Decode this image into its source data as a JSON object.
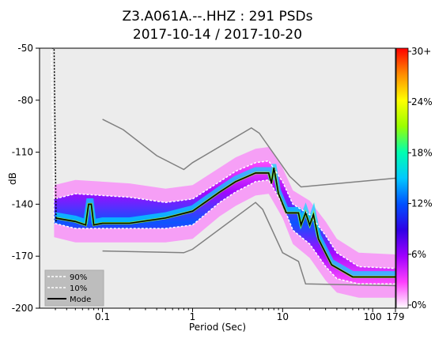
{
  "chart_data": {
    "type": "heatmap",
    "title": "Z3.A061A.--.HHZ : 291 PSDs",
    "subtitle": "2017-10-14 / 2017-10-20",
    "xlabel": "Period (Sec)",
    "ylabel": "dB",
    "x_scale": "log",
    "xlim": [
      0.02,
      179
    ],
    "ylim": [
      -200,
      -50
    ],
    "x_ticks": [
      {
        "value": 0.1,
        "label": "0.1"
      },
      {
        "value": 1,
        "label": "1"
      },
      {
        "value": 10,
        "label": "10"
      },
      {
        "value": 100,
        "label": "100"
      },
      {
        "value": 179,
        "label": "179"
      }
    ],
    "y_ticks": [
      {
        "value": -50,
        "label": "-50"
      },
      {
        "value": -80,
        "label": "-80"
      },
      {
        "value": -110,
        "label": "-110"
      },
      {
        "value": -140,
        "label": "-140"
      },
      {
        "value": -170,
        "label": "-170"
      },
      {
        "value": -200,
        "label": "-200"
      }
    ],
    "colorbar": {
      "ticks": [
        "30+",
        "24%",
        "18%",
        "12%",
        "6%",
        "0%"
      ],
      "colors": [
        "#ff0000",
        "#ff8c00",
        "#ffff00",
        "#9aff00",
        "#00ffb0",
        "#00c8ff",
        "#0050ff",
        "#3000e6",
        "#a000ff",
        "#ff40ff",
        "#ffffff"
      ]
    },
    "legend": {
      "position": "bottom-left",
      "entries": [
        {
          "label": "90%",
          "style": "dashed-white"
        },
        {
          "label": "10%",
          "style": "dashed-white"
        },
        {
          "label": "Mode",
          "style": "solid-black"
        }
      ]
    },
    "noise_model_high": [
      [
        0.1,
        -91
      ],
      [
        0.17,
        -97
      ],
      [
        0.4,
        -112
      ],
      [
        0.8,
        -120
      ],
      [
        1,
        -116
      ],
      [
        4.5,
        -96
      ],
      [
        5.5,
        -99
      ],
      [
        12,
        -124
      ],
      [
        16,
        -130
      ],
      [
        179,
        -125
      ]
    ],
    "noise_model_low": [
      [
        0.1,
        -167
      ],
      [
        0.8,
        -168
      ],
      [
        1,
        -166
      ],
      [
        5,
        -139
      ],
      [
        6,
        -143
      ],
      [
        10,
        -168
      ],
      [
        15,
        -173
      ],
      [
        18,
        -186
      ],
      [
        179,
        -187
      ]
    ],
    "p90": [
      [
        0.022,
        -49
      ],
      [
        0.026,
        -49
      ],
      [
        0.027,
        -49
      ],
      [
        0.029,
        -137
      ],
      [
        0.05,
        -134
      ],
      [
        0.2,
        -136
      ],
      [
        0.5,
        -139
      ],
      [
        1,
        -137
      ],
      [
        2,
        -127
      ],
      [
        3,
        -121
      ],
      [
        5,
        -116
      ],
      [
        7,
        -115
      ],
      [
        10,
        -127
      ],
      [
        13,
        -140
      ],
      [
        20,
        -146
      ],
      [
        30,
        -158
      ],
      [
        40,
        -168
      ],
      [
        70,
        -176
      ],
      [
        179,
        -177
      ]
    ],
    "p10": [
      [
        0.022,
        -49
      ],
      [
        0.026,
        -49
      ],
      [
        0.027,
        -49
      ],
      [
        0.029,
        -151
      ],
      [
        0.05,
        -154
      ],
      [
        0.2,
        -154
      ],
      [
        0.5,
        -154
      ],
      [
        1,
        -152
      ],
      [
        2,
        -139
      ],
      [
        3,
        -133
      ],
      [
        5,
        -127
      ],
      [
        7,
        -126
      ],
      [
        10,
        -140
      ],
      [
        13,
        -155
      ],
      [
        20,
        -163
      ],
      [
        30,
        -176
      ],
      [
        40,
        -183
      ],
      [
        70,
        -186
      ],
      [
        179,
        -186
      ]
    ],
    "mode": [
      [
        0.029,
        -50
      ],
      [
        0.03,
        -148
      ],
      [
        0.05,
        -150
      ],
      [
        0.065,
        -152
      ],
      [
        0.07,
        -140
      ],
      [
        0.075,
        -140
      ],
      [
        0.08,
        -152
      ],
      [
        0.1,
        -151
      ],
      [
        0.2,
        -151
      ],
      [
        0.5,
        -148
      ],
      [
        1,
        -144
      ],
      [
        2,
        -133
      ],
      [
        3,
        -127
      ],
      [
        5,
        -122
      ],
      [
        7,
        -122
      ],
      [
        7.5,
        -128
      ],
      [
        8,
        -119
      ],
      [
        9,
        -134
      ],
      [
        11,
        -145
      ],
      [
        15,
        -145
      ],
      [
        16,
        -152
      ],
      [
        18,
        -145
      ],
      [
        20,
        -152
      ],
      [
        22,
        -146
      ],
      [
        25,
        -160
      ],
      [
        35,
        -175
      ],
      [
        60,
        -182
      ],
      [
        179,
        -182
      ]
    ]
  }
}
